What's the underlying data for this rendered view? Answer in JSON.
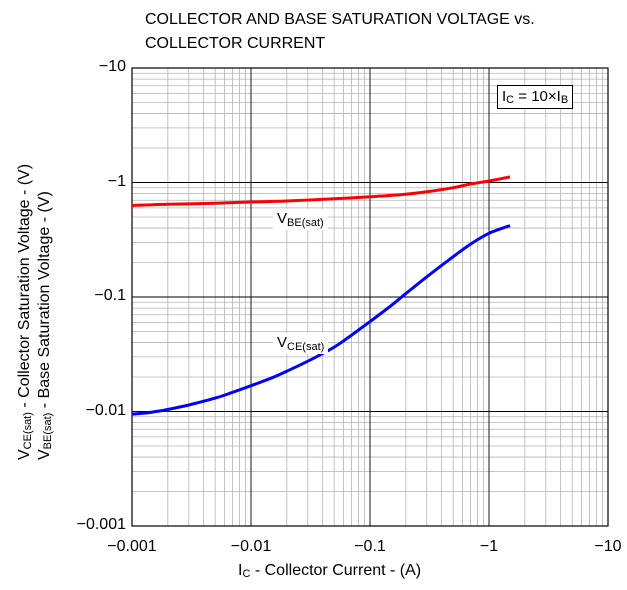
{
  "chart_data": {
    "type": "line",
    "title_lines": [
      "COLLECTOR AND BASE SATURATION VOLTAGE vs.",
      "COLLECTOR CURRENT"
    ],
    "x_scale": "log",
    "y_scale": "log",
    "xlim": [
      -0.001,
      -10
    ],
    "ylim": [
      -0.001,
      -10
    ],
    "grid": true,
    "x_ticks": [
      -0.001,
      -0.01,
      -0.1,
      -1,
      -10
    ],
    "x_tick_labels": [
      "−0.001",
      "−0.01",
      "−0.1",
      "−1",
      "−10"
    ],
    "y_ticks": [
      -10,
      -1,
      -0.1,
      -0.01,
      -0.001
    ],
    "y_tick_labels": [
      "−10",
      "−1",
      "−0.1",
      "−0.01",
      "−0.001"
    ],
    "xlabel": {
      "main": "I",
      "sub": "C",
      "rest": " - Collector Current - (A)"
    },
    "ylabel_1": {
      "main": "V",
      "sub": "CE(sat)",
      "rest": " - Collector Saturation Voltage - (V)"
    },
    "ylabel_2": {
      "main": "V",
      "sub": "BE(sat)",
      "rest": " - Base Saturation Voltage - (V)"
    },
    "condition": {
      "a": "I",
      "a_sub": "C",
      "mid": " = 10×I",
      "b_sub": "B"
    },
    "series": [
      {
        "name": "VBE(sat)",
        "label_main": "V",
        "label_sub": "BE(sat)",
        "color": "#ff0000",
        "x": [
          -0.001,
          -0.0012,
          -0.0015,
          -0.002,
          -0.003,
          -0.005,
          -0.01,
          -0.02,
          -0.05,
          -0.1,
          -0.2,
          -0.3,
          -0.5,
          -0.7,
          -1,
          -1.5
        ],
        "y": [
          -0.63,
          -0.635,
          -0.64,
          -0.645,
          -0.65,
          -0.66,
          -0.675,
          -0.69,
          -0.72,
          -0.75,
          -0.79,
          -0.83,
          -0.9,
          -0.97,
          -1.03,
          -1.12
        ]
      },
      {
        "name": "VCE(sat)",
        "label_main": "V",
        "label_sub": "CE(sat)",
        "color": "#0000ff",
        "x": [
          -0.001,
          -0.0013,
          -0.0017,
          -0.002,
          -0.003,
          -0.005,
          -0.007,
          -0.01,
          -0.015,
          -0.02,
          -0.03,
          -0.05,
          -0.07,
          -0.1,
          -0.15,
          -0.2,
          -0.3,
          -0.5,
          -0.7,
          -1,
          -1.5
        ],
        "y": [
          -0.0095,
          -0.0097,
          -0.0101,
          -0.0104,
          -0.0114,
          -0.0131,
          -0.0147,
          -0.0168,
          -0.0197,
          -0.0225,
          -0.0275,
          -0.0365,
          -0.0465,
          -0.061,
          -0.084,
          -0.107,
          -0.15,
          -0.225,
          -0.29,
          -0.36,
          -0.42
        ]
      }
    ]
  }
}
